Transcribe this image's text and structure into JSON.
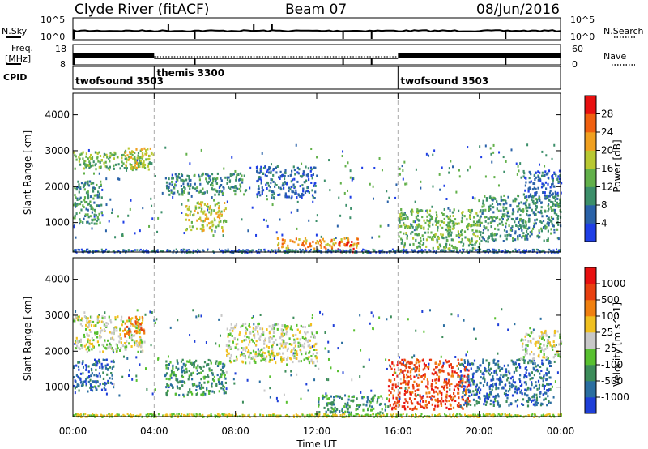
{
  "header": {
    "station": "Clyde River (fitACF)",
    "beam": "Beam 07",
    "date": "08/Jun/2016"
  },
  "aux_panels": {
    "left_labels": [
      "N.Sky",
      "Freq.",
      "[MHz]",
      "CPID"
    ],
    "right_labels": [
      "N.Search",
      "Nave"
    ],
    "nsky_ticks": [
      "10^5",
      "10^0"
    ],
    "nsearch_ticks": [
      "10^5",
      "10^0"
    ],
    "freq_ticks": [
      "18",
      "8"
    ],
    "nave_ticks": [
      "60",
      "0"
    ],
    "cpid_segments": [
      {
        "label": "twofsound 3503",
        "start_hour": 0
      },
      {
        "label": "themis 3300",
        "start_hour": 4
      },
      {
        "label": "twofsound 3503",
        "start_hour": 16
      }
    ]
  },
  "x_axis": {
    "label": "Time UT",
    "ticks": [
      "00:00",
      "04:00",
      "08:00",
      "12:00",
      "16:00",
      "20:00",
      "00:00"
    ],
    "range_hours": [
      0,
      24
    ]
  },
  "chart_data": [
    {
      "type": "heatmap",
      "quantity": "Power",
      "ylabel": "Slant Range [km]",
      "yticks": [
        "1000",
        "2000",
        "3000",
        "4000"
      ],
      "ylim": [
        180,
        4600
      ],
      "colorbar_label": "Power [dB]",
      "colorbar_ticks": [
        "4",
        "8",
        "12",
        "16",
        "20",
        "24",
        "28"
      ],
      "colors": [
        "#1f3fe6",
        "#2a62a8",
        "#3c8f6a",
        "#62b04a",
        "#b8c832",
        "#f0a020",
        "#f06010",
        "#e81010"
      ],
      "regions": [
        {
          "x": [
            0.0,
            1.4
          ],
          "y": [
            1000,
            2200
          ],
          "level": 2
        },
        {
          "x": [
            0.0,
            4.0
          ],
          "y": [
            2500,
            3000
          ],
          "level": 3
        },
        {
          "x": [
            2.5,
            3.8
          ],
          "y": [
            2550,
            3100
          ],
          "level": 4
        },
        {
          "x": [
            4.5,
            8.5
          ],
          "y": [
            1800,
            2400
          ],
          "level": 2
        },
        {
          "x": [
            5.5,
            7.5
          ],
          "y": [
            800,
            1600
          ],
          "level": 4
        },
        {
          "x": [
            9.0,
            12.0
          ],
          "y": [
            1700,
            2600
          ],
          "level": 1
        },
        {
          "x": [
            10.0,
            14.0
          ],
          "y": [
            300,
            600
          ],
          "level": 5
        },
        {
          "x": [
            13.0,
            13.8
          ],
          "y": [
            200,
            500
          ],
          "level": 7
        },
        {
          "x": [
            16.0,
            20.0
          ],
          "y": [
            300,
            1400
          ],
          "level": 3
        },
        {
          "x": [
            20.0,
            24.0
          ],
          "y": [
            500,
            1800
          ],
          "level": 2
        },
        {
          "x": [
            22.0,
            24.0
          ],
          "y": [
            1700,
            2500
          ],
          "level": 1
        }
      ]
    },
    {
      "type": "heatmap",
      "quantity": "Velocity",
      "ylabel": "Slant Range [km]",
      "yticks": [
        "1000",
        "2000",
        "3000",
        "4000"
      ],
      "ylim": [
        180,
        4600
      ],
      "colorbar_label": "Velocity [m s^-1]",
      "colorbar_ticks": [
        "1000",
        "500",
        "100",
        "25",
        "-25",
        "-100",
        "-500",
        "-1000"
      ],
      "colors": [
        "#1e3fd8",
        "#2a6ea0",
        "#3c8c5a",
        "#58c030",
        "#c8c8c8",
        "#f0c020",
        "#f08010",
        "#e84010",
        "#e81010"
      ],
      "regions": [
        {
          "x": [
            0.0,
            3.5
          ],
          "y": [
            2000,
            3000
          ],
          "level": 4
        },
        {
          "x": [
            0.0,
            2.0
          ],
          "y": [
            900,
            1800
          ],
          "level": 1
        },
        {
          "x": [
            2.5,
            3.5
          ],
          "y": [
            2400,
            3000
          ],
          "level": 6
        },
        {
          "x": [
            4.5,
            7.5
          ],
          "y": [
            800,
            1800
          ],
          "level": 2
        },
        {
          "x": [
            7.5,
            12.0
          ],
          "y": [
            1700,
            2800
          ],
          "level": 4
        },
        {
          "x": [
            12.0,
            15.5
          ],
          "y": [
            300,
            800
          ],
          "level": 2
        },
        {
          "x": [
            15.5,
            19.5
          ],
          "y": [
            400,
            1800
          ],
          "level": 7
        },
        {
          "x": [
            19.0,
            23.5
          ],
          "y": [
            500,
            1800
          ],
          "level": 1
        },
        {
          "x": [
            22.0,
            24.0
          ],
          "y": [
            1800,
            2600
          ],
          "level": 4
        }
      ]
    }
  ]
}
